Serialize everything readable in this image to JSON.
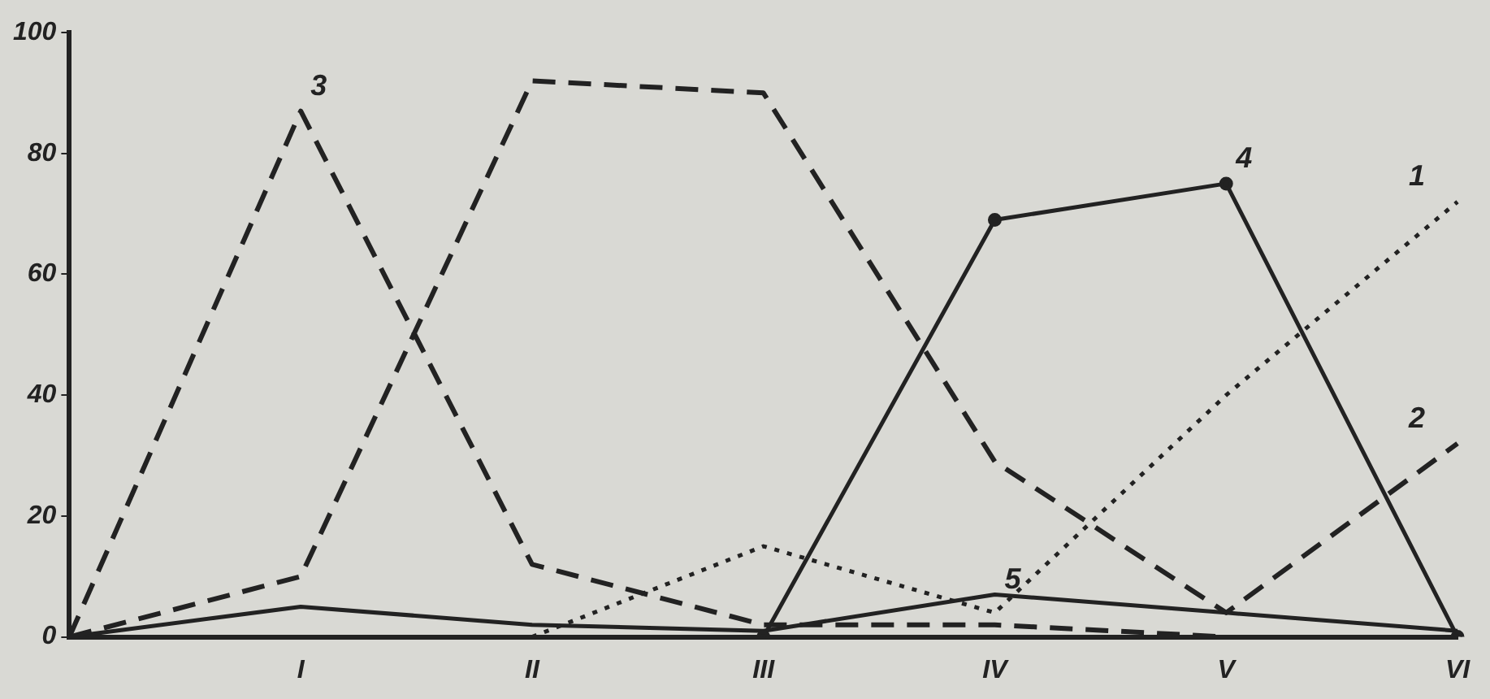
{
  "chart_data": {
    "type": "line",
    "categories": [
      null,
      "I",
      "II",
      "III",
      "IV",
      "V",
      "VI"
    ],
    "ylim": [
      0,
      100
    ],
    "yticks": [
      0,
      20,
      40,
      60,
      80,
      100
    ],
    "grid": false,
    "legend": false,
    "series": [
      {
        "name": "1",
        "color": "#222222",
        "line_style": "dotted",
        "marker": "none",
        "values": [
          null,
          null,
          0,
          15,
          4,
          40,
          72
        ]
      },
      {
        "name": "2",
        "color": "#222222",
        "line_style": "dashed",
        "marker": "none",
        "values": [
          0,
          10,
          92,
          90,
          29,
          4,
          32
        ]
      },
      {
        "name": "3",
        "color": "#222222",
        "line_style": "dashed",
        "marker": "none",
        "values": [
          0,
          87,
          12,
          2,
          2,
          0,
          null
        ]
      },
      {
        "name": "4",
        "color": "#222222",
        "line_style": "solid",
        "marker": "circle",
        "values": [
          null,
          null,
          null,
          0,
          69,
          75,
          0
        ]
      },
      {
        "name": "5",
        "color": "#222222",
        "line_style": "solid",
        "marker": "none",
        "values": [
          0,
          5,
          2,
          1,
          7,
          4,
          1
        ]
      }
    ]
  }
}
